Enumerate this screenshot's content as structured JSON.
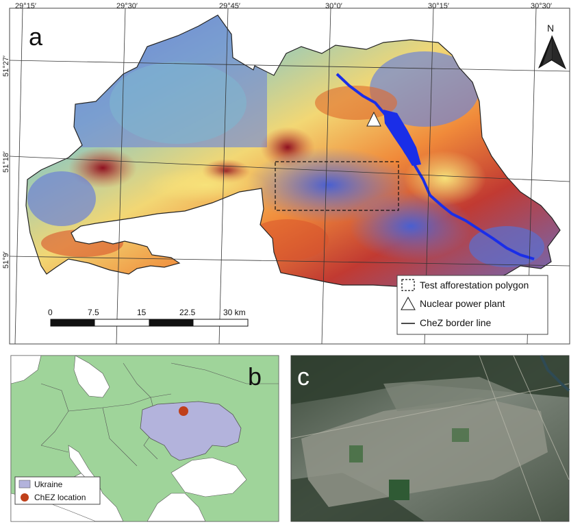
{
  "panel_a": {
    "letter": "a",
    "top_labels": [
      "29°15′",
      "29°30′",
      "29°45′",
      "30°0′",
      "30°15′",
      "30°30′"
    ],
    "left_labels": [
      "51°27′",
      "51°18′",
      "51°9′"
    ],
    "north_label": "N",
    "scale": {
      "ticks": [
        "0",
        "7.5",
        "15",
        "22.5",
        "30 km"
      ]
    },
    "legend": {
      "items": [
        {
          "symbol": "dashed-rect",
          "label": "Test afforestation polygon"
        },
        {
          "symbol": "triangle",
          "label": "Nuclear power plant"
        },
        {
          "symbol": "line",
          "label": "CheZ border line"
        }
      ]
    }
  },
  "panel_b": {
    "letter": "b",
    "legend": {
      "items": [
        {
          "symbol": "rect",
          "label": "Ukraine",
          "color": "#b3b3dc"
        },
        {
          "symbol": "dot",
          "label": "ChEZ location",
          "color": "#c0401a"
        }
      ]
    },
    "colors": {
      "land": "#9fd49a",
      "sea": "#ffffff",
      "ukraine": "#b3b3dc"
    }
  },
  "panel_c": {
    "letter": "c"
  }
}
